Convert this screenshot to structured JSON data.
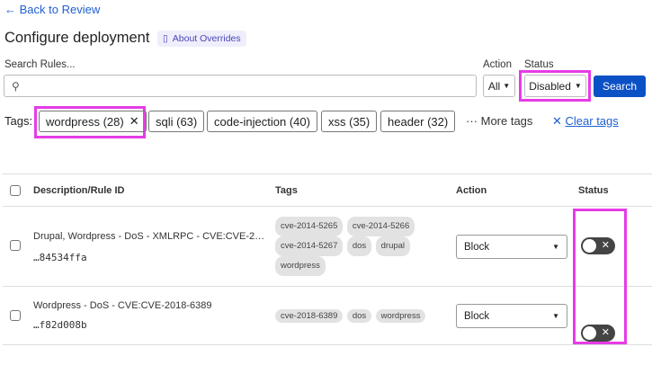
{
  "nav": {
    "back": "← Back to Review"
  },
  "header": {
    "title": "Configure deployment",
    "about": "About Overrides"
  },
  "filters": {
    "search_label": "Search Rules...",
    "search_value": "",
    "action_label": "Action",
    "action_value": "All",
    "status_label": "Status",
    "status_value": "Disabled",
    "search_button": "Search"
  },
  "tags": {
    "label": "Tags:",
    "chips": [
      "wordpress (28)",
      "sqli (63)",
      "code-injection (40)",
      "xss (35)",
      "header (32)"
    ],
    "more": "More tags",
    "clear": "Clear tags"
  },
  "table": {
    "headers": [
      "Description/Rule ID",
      "Tags",
      "Action",
      "Status"
    ],
    "rows": [
      {
        "description": "Drupal, Wordpress - DoS - XMLRPC - CVE:CVE-2…",
        "rule_id": "…84534ffa",
        "tags": [
          "cve-2014-5265",
          "cve-2014-5266",
          "cve-2014-5267",
          "dos",
          "drupal",
          "wordpress"
        ],
        "action": "Block",
        "enabled": false
      },
      {
        "description": "Wordpress - DoS - CVE:CVE-2018-6389",
        "rule_id": "…f82d008b",
        "tags": [
          "cve-2018-6389",
          "dos",
          "wordpress"
        ],
        "action": "Block",
        "enabled": false
      }
    ]
  },
  "colors": {
    "accent": "#0b51c5",
    "highlight": "#e63ce6",
    "toggle_off": "#444444"
  }
}
